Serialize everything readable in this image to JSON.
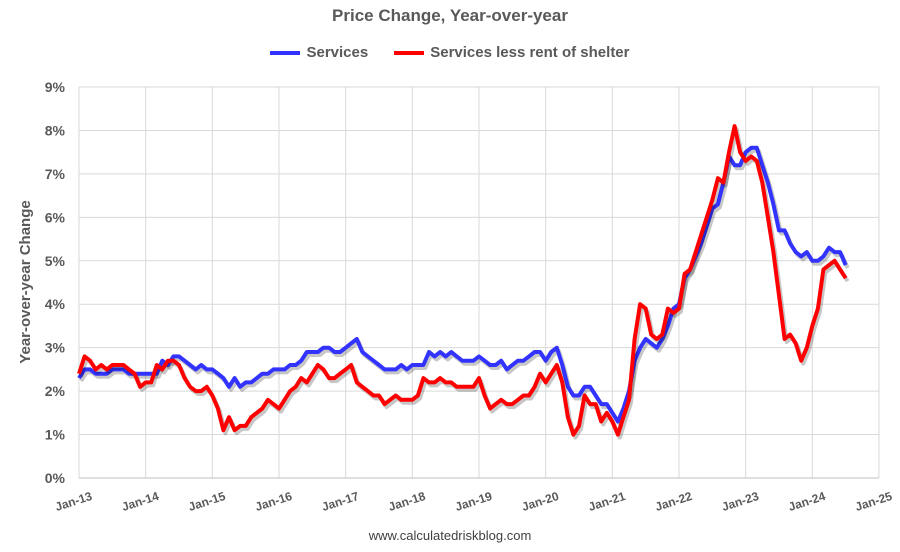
{
  "chart_data": {
    "type": "line",
    "title": "Price Change, Year-over-year",
    "ylabel": "Year-over-year Change",
    "xlabel": "",
    "ylim": [
      0,
      9
    ],
    "y_ticks": [
      "0%",
      "1%",
      "2%",
      "3%",
      "4%",
      "5%",
      "6%",
      "7%",
      "8%",
      "9%"
    ],
    "x_ticks": [
      "Jan-13",
      "Jan-14",
      "Jan-15",
      "Jan-16",
      "Jan-17",
      "Jan-18",
      "Jan-19",
      "Jan-20",
      "Jan-21",
      "Jan-22",
      "Jan-23",
      "Jan-24",
      "Jan-25"
    ],
    "x_start": "Jan-13",
    "x_frequency": "monthly",
    "grid": true,
    "legend_position": "top",
    "series": [
      {
        "name": "Services",
        "color": "#3333FF",
        "values": [
          2.3,
          2.5,
          2.5,
          2.4,
          2.4,
          2.4,
          2.5,
          2.5,
          2.5,
          2.4,
          2.4,
          2.4,
          2.4,
          2.4,
          2.4,
          2.7,
          2.6,
          2.8,
          2.8,
          2.7,
          2.6,
          2.5,
          2.6,
          2.5,
          2.5,
          2.4,
          2.3,
          2.1,
          2.3,
          2.1,
          2.2,
          2.2,
          2.3,
          2.4,
          2.4,
          2.5,
          2.5,
          2.5,
          2.6,
          2.6,
          2.7,
          2.9,
          2.9,
          2.9,
          3.0,
          3.0,
          2.9,
          2.9,
          3.0,
          3.1,
          3.2,
          2.9,
          2.8,
          2.7,
          2.6,
          2.5,
          2.5,
          2.5,
          2.6,
          2.5,
          2.6,
          2.6,
          2.6,
          2.9,
          2.8,
          2.9,
          2.8,
          2.9,
          2.8,
          2.7,
          2.7,
          2.7,
          2.8,
          2.7,
          2.6,
          2.6,
          2.7,
          2.5,
          2.6,
          2.7,
          2.7,
          2.8,
          2.9,
          2.9,
          2.7,
          2.9,
          3.0,
          2.6,
          2.1,
          1.9,
          1.9,
          2.1,
          2.1,
          1.9,
          1.7,
          1.7,
          1.5,
          1.3,
          1.6,
          2.0,
          2.7,
          3.0,
          3.2,
          3.1,
          3.0,
          3.2,
          3.5,
          3.9,
          4.0,
          4.6,
          4.8,
          5.1,
          5.4,
          5.8,
          6.2,
          6.3,
          6.8,
          7.4,
          7.2,
          7.2,
          7.5,
          7.6,
          7.6,
          7.2,
          6.8,
          6.3,
          5.7,
          5.7,
          5.4,
          5.2,
          5.1,
          5.2,
          5.0,
          5.0,
          5.1,
          5.3,
          5.2,
          5.2,
          4.9
        ]
      },
      {
        "name": "Services less rent of shelter",
        "color": "#FF0000",
        "values": [
          2.4,
          2.8,
          2.7,
          2.5,
          2.6,
          2.5,
          2.6,
          2.6,
          2.6,
          2.5,
          2.4,
          2.1,
          2.2,
          2.2,
          2.6,
          2.5,
          2.7,
          2.7,
          2.6,
          2.3,
          2.1,
          2.0,
          2.0,
          2.1,
          1.9,
          1.6,
          1.1,
          1.4,
          1.1,
          1.2,
          1.2,
          1.4,
          1.5,
          1.6,
          1.8,
          1.7,
          1.6,
          1.8,
          2.0,
          2.1,
          2.3,
          2.2,
          2.4,
          2.6,
          2.5,
          2.3,
          2.3,
          2.4,
          2.5,
          2.6,
          2.2,
          2.1,
          2.0,
          1.9,
          1.9,
          1.7,
          1.8,
          1.9,
          1.8,
          1.8,
          1.8,
          1.9,
          2.3,
          2.2,
          2.2,
          2.3,
          2.2,
          2.2,
          2.1,
          2.1,
          2.1,
          2.1,
          2.3,
          1.9,
          1.6,
          1.7,
          1.8,
          1.7,
          1.7,
          1.8,
          1.9,
          1.9,
          2.1,
          2.4,
          2.2,
          2.4,
          2.6,
          2.2,
          1.4,
          1.0,
          1.2,
          1.9,
          1.7,
          1.7,
          1.3,
          1.5,
          1.3,
          1.0,
          1.4,
          1.8,
          3.2,
          4.0,
          3.9,
          3.3,
          3.2,
          3.3,
          3.9,
          3.8,
          3.9,
          4.7,
          4.8,
          5.2,
          5.6,
          6.0,
          6.4,
          6.9,
          6.8,
          7.5,
          8.1,
          7.5,
          7.3,
          7.4,
          7.3,
          6.8,
          6.0,
          5.2,
          4.2,
          3.2,
          3.3,
          3.1,
          2.7,
          3.0,
          3.5,
          3.9,
          4.8,
          4.9,
          5.0,
          4.8,
          4.6
        ]
      }
    ]
  },
  "footer": "www.calculatedriskblog.com"
}
